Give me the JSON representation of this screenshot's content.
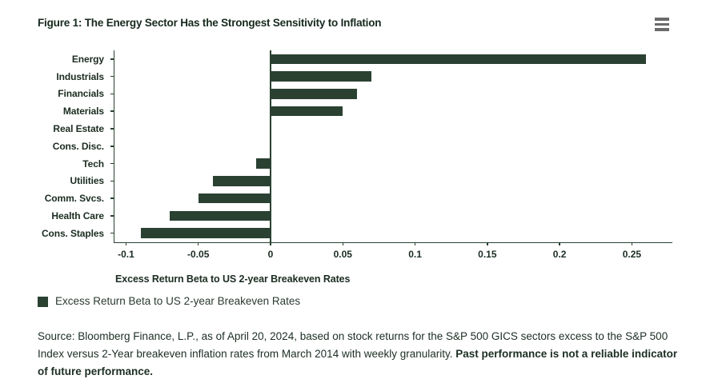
{
  "header": {
    "title": "Figure 1: The Energy Sector Has the Strongest Sensitivity to Inflation"
  },
  "colors": {
    "bar": "#2a4132",
    "axis": "#2a4132",
    "text": "#1b2c21",
    "menu_icon": "#6a6a6a",
    "background": "#ffffff"
  },
  "chart_data": {
    "type": "bar",
    "orientation": "horizontal",
    "title": "Figure 1: The Energy Sector Has the Strongest Sensitivity to Inflation",
    "categories": [
      "Energy",
      "Industrials",
      "Financials",
      "Materials",
      "Real Estate",
      "Cons. Disc.",
      "Tech",
      "Utilities",
      "Comm. Svcs.",
      "Health Care",
      "Cons. Staples"
    ],
    "values": [
      0.26,
      0.07,
      0.06,
      0.05,
      0,
      0,
      -0.01,
      -0.04,
      -0.05,
      -0.07,
      -0.09
    ],
    "series_name": "Excess Return Beta to US 2-year Breakeven Rates",
    "xlabel": "Excess Return Beta to US 2-year Breakeven Rates",
    "ylabel": "",
    "x_tick_labels": [
      "-0.1",
      "-0.05",
      "0",
      "0.05",
      "0.1",
      "0.15",
      "0.2",
      "0.25"
    ],
    "x_tick_values": [
      -0.1,
      -0.05,
      0,
      0.05,
      0.1,
      0.15,
      0.2,
      0.25
    ],
    "xlim": [
      -0.108,
      0.278
    ],
    "grid": false,
    "zero_line": true,
    "legend_position": "bottom-left"
  },
  "legend": {
    "label": "Excess Return Beta to US 2-year Breakeven Rates"
  },
  "source": {
    "text": "Source: Bloomberg Finance, L.P., as of April 20, 2024, based on stock returns for the S&P 500 GICS sectors excess to the S&P 500 Index versus 2-Year breakeven inflation rates from March 2014 with weekly granularity. ",
    "bold_text": "Past performance is not a reliable indicator of future performance."
  }
}
